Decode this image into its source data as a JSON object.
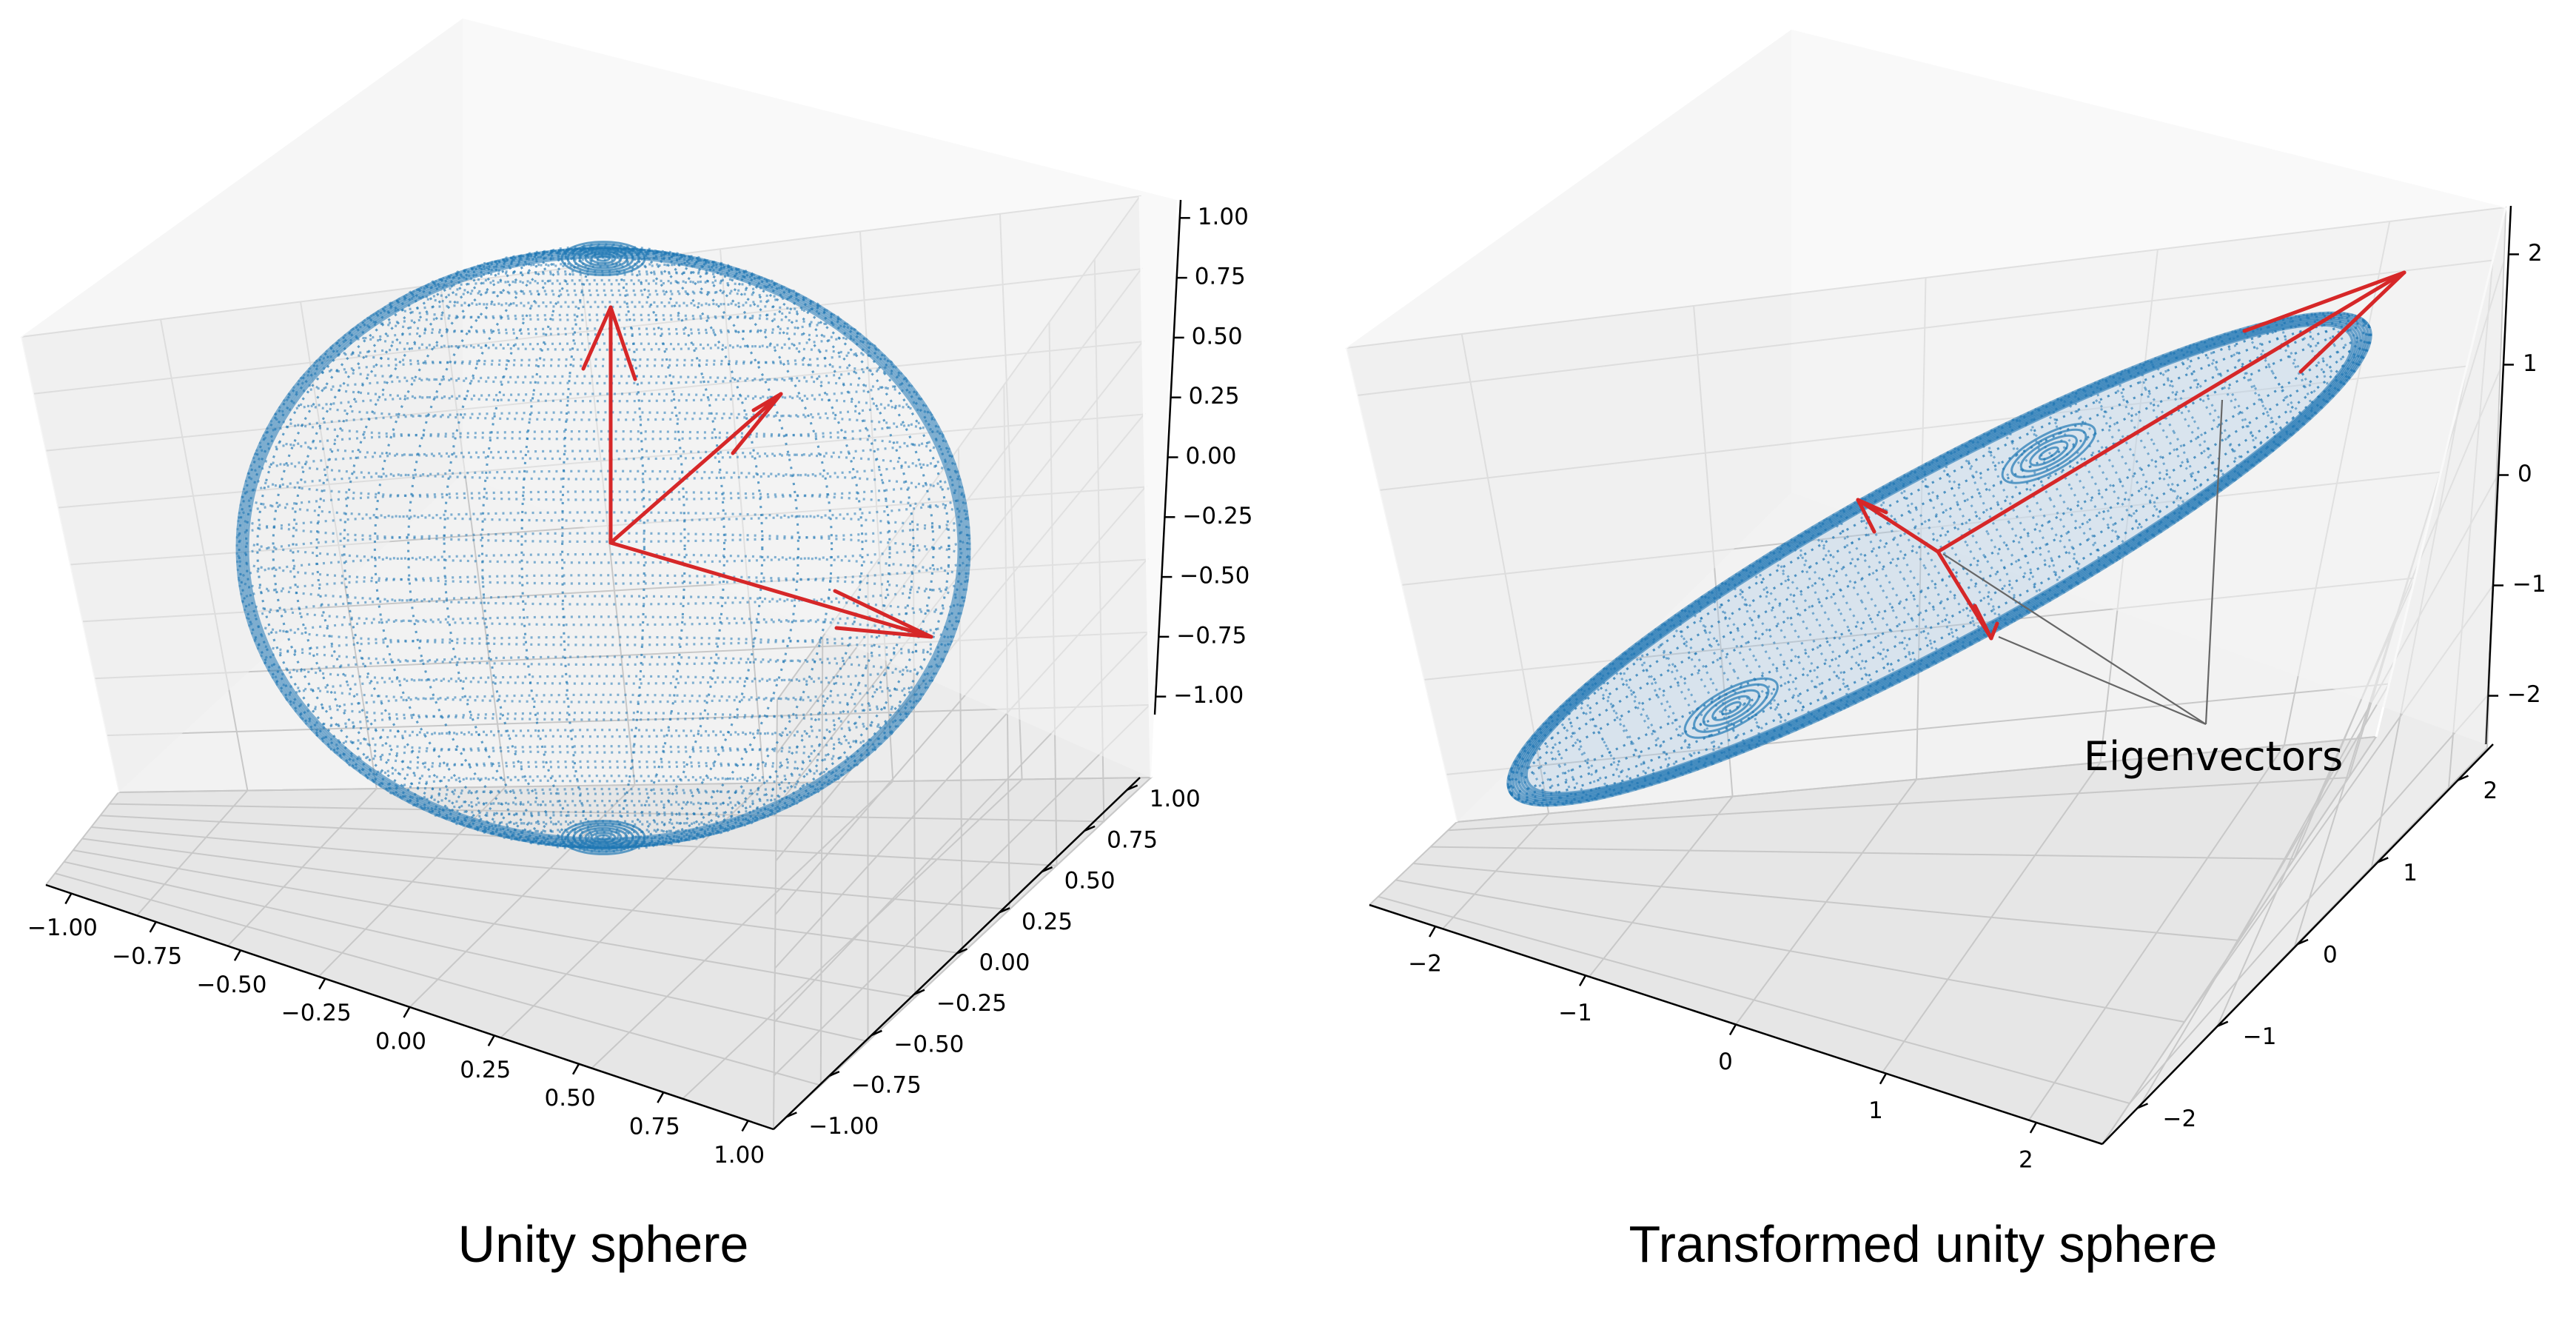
{
  "captions": {
    "left": "Unity sphere",
    "right": "Transformed unity sphere"
  },
  "chart_data": [
    {
      "type": "scatter",
      "title": "",
      "caption": "Unity sphere",
      "projection": "3d",
      "surface": "unit sphere (point cloud)",
      "radius": 1,
      "xlim": [
        -1.0,
        1.0
      ],
      "ylim": [
        -1.0,
        1.0
      ],
      "zlim": [
        -1.0,
        1.0
      ],
      "xticks": [
        "−1.00",
        "−0.75",
        "−0.50",
        "−0.25",
        "0.00",
        "0.25",
        "0.50",
        "0.75",
        "1.00"
      ],
      "yticks": [
        "−1.00",
        "−0.75",
        "−0.50",
        "−0.25",
        "0.00",
        "0.25",
        "0.50",
        "0.75",
        "1.00"
      ],
      "zticks": [
        "−1.00",
        "−0.75",
        "−0.50",
        "−0.25",
        "0.00",
        "0.25",
        "0.50",
        "0.75",
        "1.00"
      ],
      "grid": true,
      "point_color": "#1f77b4",
      "arrow_color": "#d62728",
      "arrows": [
        {
          "name": "vector-1",
          "from": [
            0,
            0,
            0
          ],
          "to": [
            1,
            0,
            0
          ]
        },
        {
          "name": "vector-2",
          "from": [
            0,
            0,
            0
          ],
          "to": [
            0,
            1,
            0
          ]
        },
        {
          "name": "vector-3",
          "from": [
            0,
            0,
            0
          ],
          "to": [
            0,
            0,
            1
          ]
        }
      ]
    },
    {
      "type": "scatter",
      "title": "",
      "caption": "Transformed unity sphere",
      "projection": "3d",
      "surface": "transformed sphere (ellipsoid point cloud)",
      "xlim": [
        -2.6,
        2.6
      ],
      "ylim": [
        -2.6,
        2.6
      ],
      "zlim": [
        -2.6,
        2.6
      ],
      "xticks": [
        "−2",
        "−1",
        "0",
        "1",
        "2"
      ],
      "yticks": [
        "−2",
        "−1",
        "0",
        "1",
        "2"
      ],
      "zticks": [
        "−2",
        "−1",
        "0",
        "1",
        "2"
      ],
      "grid": true,
      "point_color": "#1f77b4",
      "arrow_color": "#d62728",
      "annotation": "Eigenvectors",
      "arrows": [
        {
          "name": "eigenvector-1",
          "from": [
            0,
            0,
            0
          ],
          "to": [
            1.6,
            1.6,
            2.1
          ]
        },
        {
          "name": "eigenvector-2",
          "from": [
            0,
            0,
            0
          ],
          "to": [
            -0.3,
            -0.6,
            0.3
          ]
        },
        {
          "name": "eigenvector-3",
          "from": [
            0,
            0,
            0
          ],
          "to": [
            0.3,
            -0.1,
            -0.5
          ]
        }
      ]
    }
  ]
}
